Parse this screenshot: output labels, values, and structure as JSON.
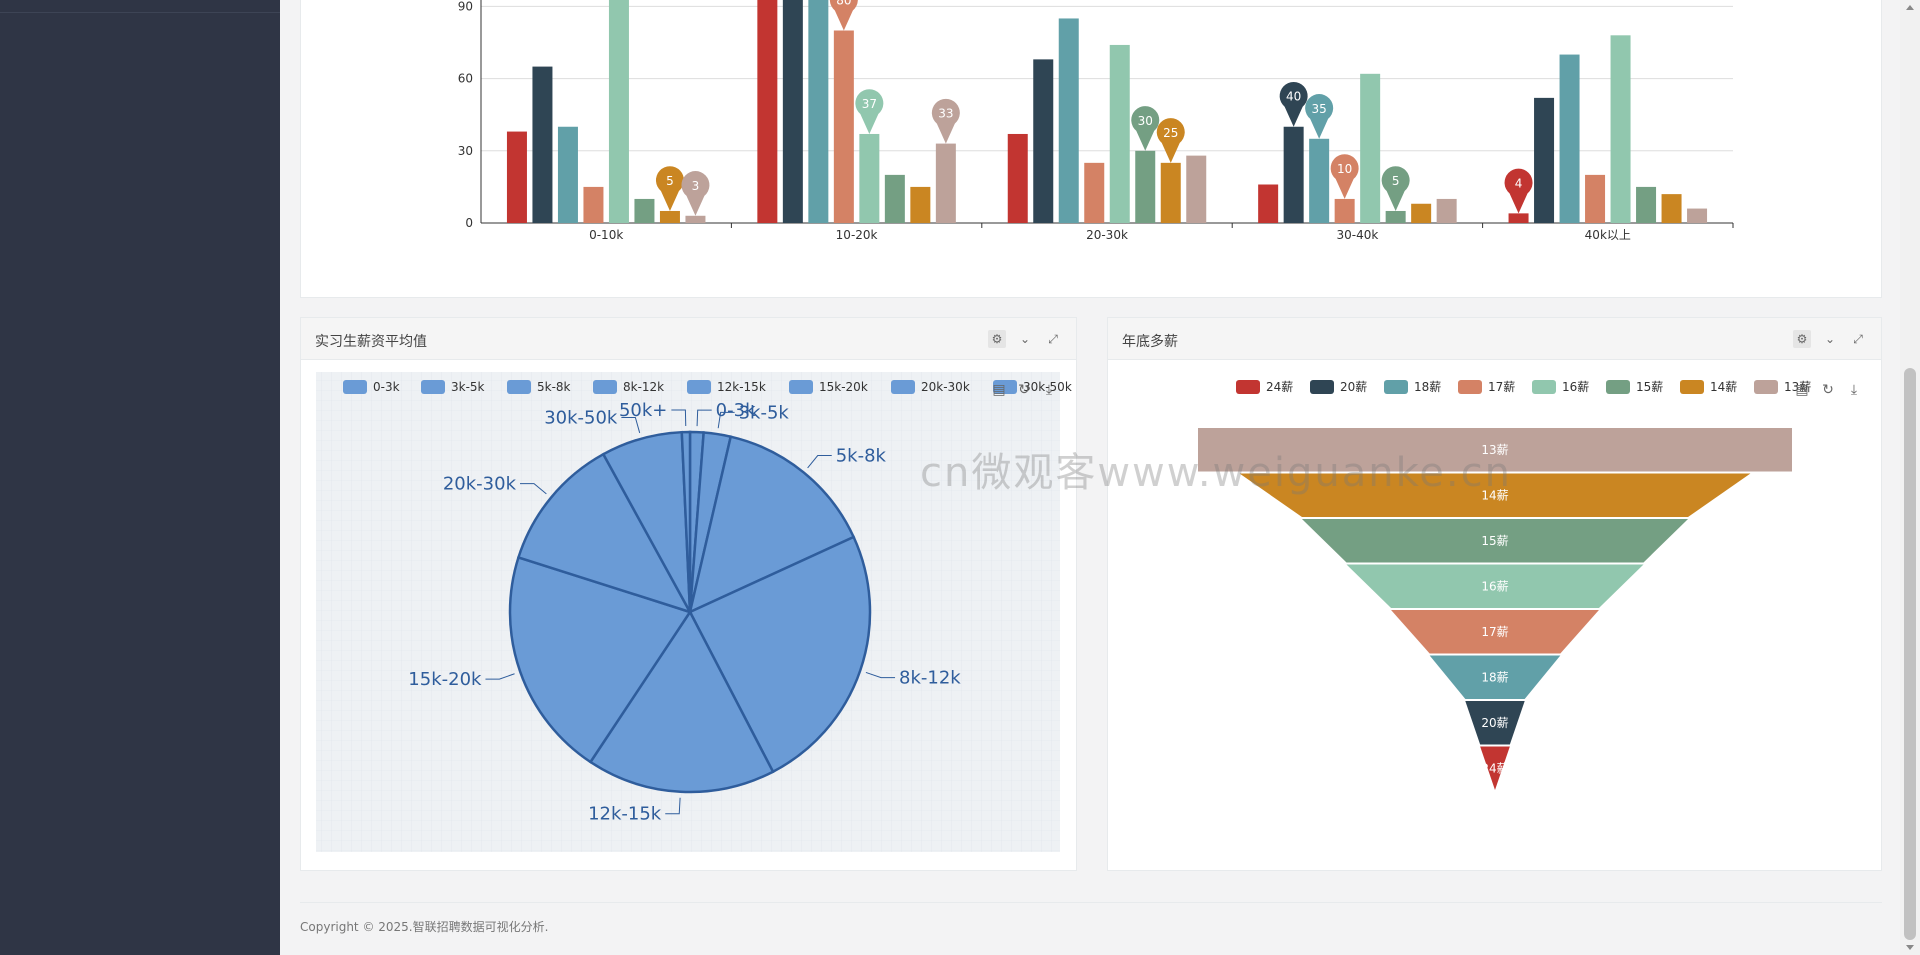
{
  "bar_chart": {
    "chart_data": {
      "type": "bar",
      "categories": [
        "0-10k",
        "10-20k",
        "20-30k",
        "30-40k",
        "40k以上"
      ],
      "ylim": [
        0,
        90
      ],
      "yticks": [
        "0",
        "30",
        "60",
        "90"
      ],
      "series": [
        {
          "name": "24薪",
          "color": "#c23531",
          "values": [
            38,
            95,
            37,
            16,
            4
          ]
        },
        {
          "name": "20薪",
          "color": "#2f4554",
          "values": [
            65,
            95,
            68,
            40,
            52
          ]
        },
        {
          "name": "18薪",
          "color": "#61a0a8",
          "values": [
            40,
            95,
            85,
            35,
            70
          ]
        },
        {
          "name": "17薪",
          "color": "#d48265",
          "values": [
            15,
            80,
            25,
            10,
            20
          ]
        },
        {
          "name": "16薪",
          "color": "#91c7ae",
          "values": [
            95,
            37,
            74,
            62,
            78
          ]
        },
        {
          "name": "15薪",
          "color": "#749f83",
          "values": [
            10,
            20,
            30,
            5,
            15
          ]
        },
        {
          "name": "14薪",
          "color": "#ca8622",
          "values": [
            5,
            15,
            25,
            8,
            12
          ]
        },
        {
          "name": "13薪",
          "color": "#bda29a",
          "values": [
            3,
            33,
            28,
            10,
            6
          ]
        }
      ],
      "pins": [
        {
          "series": 6,
          "cat": 0,
          "label": "5"
        },
        {
          "series": 7,
          "cat": 0,
          "label": "3"
        },
        {
          "series": 3,
          "cat": 1,
          "label": "80"
        },
        {
          "series": 4,
          "cat": 1,
          "label": "37"
        },
        {
          "series": 7,
          "cat": 1,
          "label": "33"
        },
        {
          "series": 5,
          "cat": 2,
          "label": "30"
        },
        {
          "series": 6,
          "cat": 2,
          "label": "25"
        },
        {
          "series": 1,
          "cat": 3,
          "label": "40"
        },
        {
          "series": 2,
          "cat": 3,
          "label": "35"
        },
        {
          "series": 3,
          "cat": 3,
          "label": "10"
        },
        {
          "series": 5,
          "cat": 3,
          "label": "5"
        },
        {
          "series": 0,
          "cat": 4,
          "label": "4"
        }
      ]
    }
  },
  "pie_panel": {
    "title": "实习生薪资平均值",
    "chart_data": {
      "type": "pie",
      "legend": [
        "0-3k",
        "3k-5k",
        "5k-8k",
        "8k-12k",
        "12k-15k",
        "15k-20k",
        "20k-30k",
        "30k-50k",
        "50k+"
      ],
      "values": [
        1,
        2,
        12,
        20,
        14,
        17,
        10,
        6,
        0.6
      ],
      "slice_color": "#6a9bd6",
      "line_color": "#2f5d9c"
    }
  },
  "funnel_panel": {
    "title": "年底多薪",
    "chart_data": {
      "type": "funnel",
      "legend": [
        {
          "name": "24薪",
          "color": "#c23531"
        },
        {
          "name": "20薪",
          "color": "#2f4554"
        },
        {
          "name": "18薪",
          "color": "#61a0a8"
        },
        {
          "name": "17薪",
          "color": "#d48265"
        },
        {
          "name": "16薪",
          "color": "#91c7ae"
        },
        {
          "name": "15薪",
          "color": "#749f83"
        },
        {
          "name": "14薪",
          "color": "#ca8622"
        },
        {
          "name": "13薪",
          "color": "#bda29a"
        }
      ],
      "layers": [
        {
          "name": "13薪",
          "color": "#bda29a",
          "value": 100
        },
        {
          "name": "14薪",
          "color": "#ca8622",
          "value": 86
        },
        {
          "name": "15薪",
          "color": "#749f83",
          "value": 65
        },
        {
          "name": "16薪",
          "color": "#91c7ae",
          "value": 50
        },
        {
          "name": "17薪",
          "color": "#d48265",
          "value": 35
        },
        {
          "name": "18薪",
          "color": "#61a0a8",
          "value": 22
        },
        {
          "name": "20薪",
          "color": "#2f4554",
          "value": 10
        },
        {
          "name": "24薪",
          "color": "#c23531",
          "value": 5
        }
      ]
    }
  },
  "watermark": "cn微观客www.weiguanke.cn",
  "footer": {
    "text": "Copyright © 2025.智联招聘数据可视化分析."
  }
}
